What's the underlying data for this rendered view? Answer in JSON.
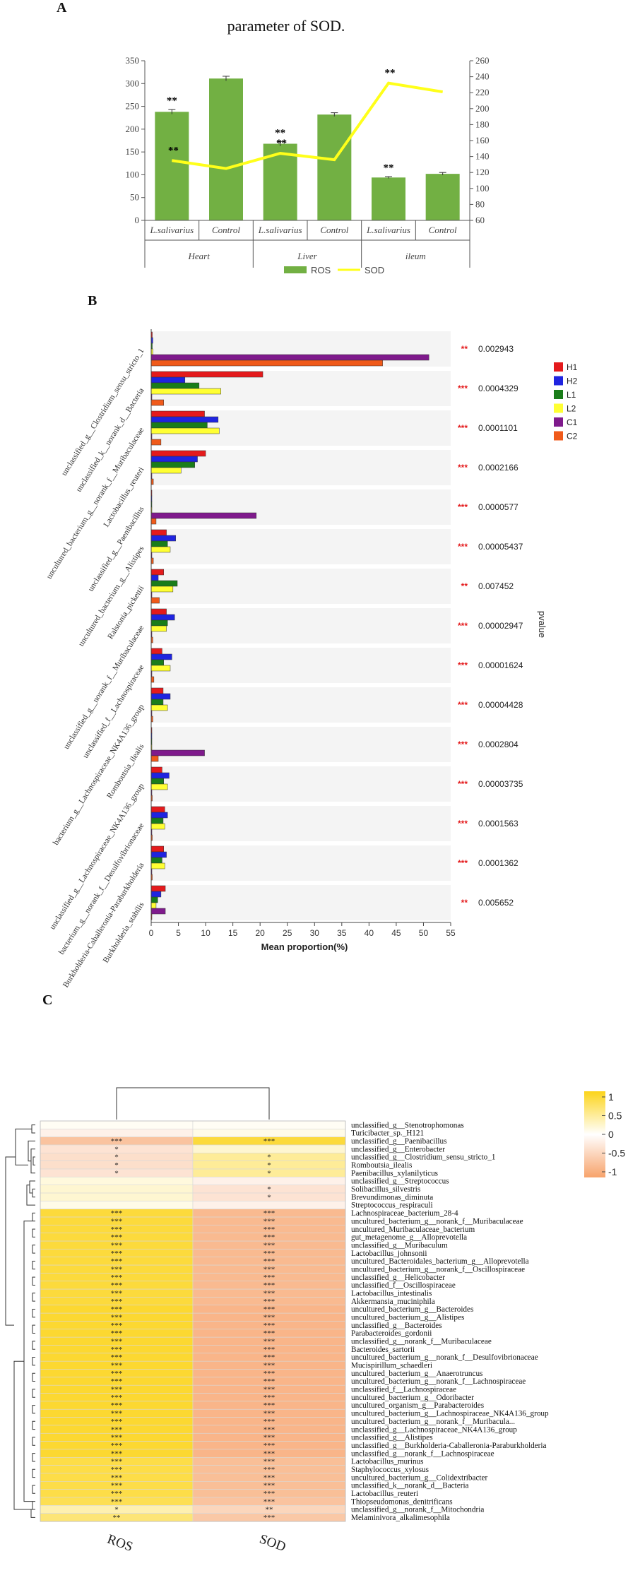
{
  "panels": {
    "a": "A",
    "b": "B",
    "c": "C"
  },
  "colors": {
    "ros_bar": "#72b043",
    "sod_line": "#ffff1a",
    "H1": "#e41a1c",
    "H2": "#1f24e0",
    "L1": "#1a7d1a",
    "L2": "#ffff33",
    "C1": "#7f1a8c",
    "C2": "#f05a1a",
    "sig_star": "#e41a1c",
    "heat_high": "#fcd41a",
    "heat_mid": "#ffffff",
    "heat_low": "#f7a36b"
  },
  "chart_data": [
    {
      "type": "bar",
      "title": "parameter of SOD.",
      "categories": [
        "L.salivarius",
        "Control",
        "L.salivarius",
        "Control",
        "L.salivarius",
        "Control"
      ],
      "groups": [
        "Heart",
        "Liver",
        "ileum"
      ],
      "series": [
        {
          "name": "ROS",
          "kind": "bar",
          "axis": "left",
          "values": [
            238,
            311,
            168,
            232,
            94,
            102
          ],
          "errors": [
            5,
            5,
            5,
            4,
            2,
            3
          ],
          "stars": [
            "**",
            "",
            "**",
            "",
            "**",
            ""
          ]
        },
        {
          "name": "SOD",
          "kind": "line",
          "axis": "right",
          "values": [
            135,
            125,
            144,
            136,
            232,
            221
          ],
          "stars": [
            "**",
            "",
            "**",
            "",
            "**",
            ""
          ]
        }
      ],
      "left_ylim": [
        0,
        350
      ],
      "left_ticks": [
        0,
        50,
        100,
        150,
        200,
        250,
        300,
        350
      ],
      "right_ylim": [
        60,
        260
      ],
      "right_ticks": [
        60,
        80,
        100,
        120,
        140,
        160,
        180,
        200,
        220,
        240,
        260
      ],
      "legend": [
        "ROS",
        "SOD"
      ]
    },
    {
      "type": "bar",
      "orientation": "horizontal",
      "xlabel": "Mean proportion(%)",
      "right_label": "pvalue",
      "xlim": [
        0,
        55
      ],
      "xticks": [
        0,
        5,
        10,
        15,
        20,
        25,
        30,
        35,
        40,
        45,
        50,
        55
      ],
      "series_names": [
        "H1",
        "H2",
        "L1",
        "L2",
        "C1",
        "C2"
      ],
      "rows": [
        {
          "label": "unclassified_g__Clostridium_sensu_stricto_1",
          "values": [
            0.2,
            0.3,
            0.2,
            0.3,
            51,
            42.5
          ],
          "sig": "**",
          "pvalue": "0.002943"
        },
        {
          "label": "unclassified_k__norank_d__Bacteria",
          "values": [
            20.5,
            6.2,
            8.8,
            12.8,
            0.1,
            2.3
          ],
          "sig": "***",
          "pvalue": "0.0004329"
        },
        {
          "label": "uncultured_bacterium_g__norank_f__Muribaculaceae",
          "values": [
            9.8,
            12.3,
            10.3,
            12.5,
            0.1,
            1.8
          ],
          "sig": "***",
          "pvalue": "0.0001101"
        },
        {
          "label": "Lactobacillus_reuteri",
          "values": [
            10,
            8.5,
            8,
            5.5,
            0.1,
            0.4
          ],
          "sig": "***",
          "pvalue": "0.0002166"
        },
        {
          "label": "unclassified_g__Paenibacillus",
          "values": [
            0.1,
            0.1,
            0.1,
            0.1,
            19.3,
            0.9
          ],
          "sig": "***",
          "pvalue": "0.0000577"
        },
        {
          "label": "uncultured_bacterium_g__Alistipes",
          "values": [
            2.8,
            4.5,
            3,
            3.5,
            0.1,
            0.4
          ],
          "sig": "***",
          "pvalue": "0.00005437"
        },
        {
          "label": "Ralstonia_pickettii",
          "values": [
            2.3,
            1.3,
            4.8,
            4,
            0.1,
            1.5
          ],
          "sig": "**",
          "pvalue": "0.007452"
        },
        {
          "label": "unclassified_g__norank_f__Muribaculaceae",
          "values": [
            2.8,
            4.3,
            3,
            2.8,
            0.1,
            0.3
          ],
          "sig": "***",
          "pvalue": "0.00002947"
        },
        {
          "label": "unclassified_f__Lachnospiraceae",
          "values": [
            2,
            3.8,
            2.3,
            3.5,
            0.1,
            0.5
          ],
          "sig": "***",
          "pvalue": "0.00001624"
        },
        {
          "label": "bacterium_g__Lachnospiraceae_NK4A136_group",
          "values": [
            2.2,
            3.5,
            2.2,
            3,
            0.1,
            0.3
          ],
          "sig": "***",
          "pvalue": "0.00004428"
        },
        {
          "label": "Romboutsia_ilealis",
          "values": [
            0.1,
            0.1,
            0.1,
            0.1,
            9.8,
            1.3
          ],
          "sig": "***",
          "pvalue": "0.0002804"
        },
        {
          "label": "unclassified_g__Lachnospiraceae_NK4A136_group",
          "values": [
            2,
            3.3,
            2.3,
            3,
            0.1,
            0.2
          ],
          "sig": "***",
          "pvalue": "0.00003735"
        },
        {
          "label": "bacterium_g__norank_f__Desulfovibrionaceae",
          "values": [
            2.5,
            3,
            2.2,
            2.5,
            0.1,
            0.2
          ],
          "sig": "***",
          "pvalue": "0.0001563"
        },
        {
          "label": "Burkholderia-Caballeronia-Paraburkholderia",
          "values": [
            2.3,
            2.8,
            2,
            2.5,
            0.1,
            0.2
          ],
          "sig": "***",
          "pvalue": "0.0001362"
        },
        {
          "label": "Burkholderia_stabilis",
          "values": [
            2.6,
            1.8,
            1.2,
            0.9,
            2.6,
            0.1
          ],
          "sig": "**",
          "pvalue": "0.005652"
        }
      ]
    },
    {
      "type": "heatmap",
      "columns": [
        "ROS",
        "SOD"
      ],
      "color_scale": {
        "min": -1,
        "max": 1,
        "ticks": [
          "1",
          "0.5",
          "0",
          "-0.5",
          "-1"
        ]
      },
      "rows": [
        {
          "label": "unclassified_g__Stenotrophomonas",
          "values": [
            0.05,
            0.05
          ],
          "stars": [
            "",
            ""
          ]
        },
        {
          "label": "Turicibacter_sp._H121",
          "values": [
            -0.15,
            0.1
          ],
          "stars": [
            "",
            ""
          ]
        },
        {
          "label": "unclassified_g__Paenibacillus",
          "values": [
            -0.65,
            0.85
          ],
          "stars": [
            "***",
            "***"
          ]
        },
        {
          "label": "unclassified_g__Enterobacter",
          "values": [
            -0.3,
            0.2
          ],
          "stars": [
            "*",
            ""
          ]
        },
        {
          "label": "unclassified_g__Clostridium_sensu_stricto_1",
          "values": [
            -0.35,
            0.45
          ],
          "stars": [
            "*",
            "*"
          ]
        },
        {
          "label": "Romboutsia_ilealis",
          "values": [
            -0.35,
            0.45
          ],
          "stars": [
            "*",
            "*"
          ]
        },
        {
          "label": "Paenibacillus_xylanilyticus",
          "values": [
            -0.3,
            0.45
          ],
          "stars": [
            "*",
            "*"
          ]
        },
        {
          "label": "unclassified_g__Streptococcus",
          "values": [
            0.15,
            -0.15
          ],
          "stars": [
            "",
            ""
          ]
        },
        {
          "label": "Solibacillus_silvestris",
          "values": [
            0.2,
            -0.3
          ],
          "stars": [
            "",
            "*"
          ]
        },
        {
          "label": "Brevundimonas_diminuta",
          "values": [
            0.2,
            -0.3
          ],
          "stars": [
            "",
            "*"
          ]
        },
        {
          "label": "Streptococcus_respiraculi",
          "values": [
            0.1,
            -0.15
          ],
          "stars": [
            "",
            ""
          ]
        },
        {
          "label": "Lachnospiraceae_bacterium_28-4",
          "values": [
            0.85,
            -0.75
          ],
          "stars": [
            "***",
            "***"
          ]
        },
        {
          "label": "uncultured_bacterium_g__norank_f__Muribaculaceae",
          "values": [
            0.85,
            -0.75
          ],
          "stars": [
            "***",
            "***"
          ]
        },
        {
          "label": "uncultured_Muribaculaceae_bacterium",
          "values": [
            0.85,
            -0.75
          ],
          "stars": [
            "***",
            "***"
          ]
        },
        {
          "label": "gut_metagenome_g__Alloprevotella",
          "values": [
            0.85,
            -0.75
          ],
          "stars": [
            "***",
            "***"
          ]
        },
        {
          "label": "unclassified_g__Muribaculum",
          "values": [
            0.85,
            -0.75
          ],
          "stars": [
            "***",
            "***"
          ]
        },
        {
          "label": "Lactobacillus_johnsonii",
          "values": [
            0.85,
            -0.75
          ],
          "stars": [
            "***",
            "***"
          ]
        },
        {
          "label": "uncultured_Bacteroidales_bacterium_g__Alloprevotella",
          "values": [
            0.85,
            -0.75
          ],
          "stars": [
            "***",
            "***"
          ]
        },
        {
          "label": "uncultured_bacterium_g__norank_f__Oscillospiraceae",
          "values": [
            0.85,
            -0.75
          ],
          "stars": [
            "***",
            "***"
          ]
        },
        {
          "label": "unclassified_g__Helicobacter",
          "values": [
            0.85,
            -0.75
          ],
          "stars": [
            "***",
            "***"
          ]
        },
        {
          "label": "unclassified_f__Oscillospiraceae",
          "values": [
            0.85,
            -0.75
          ],
          "stars": [
            "***",
            "***"
          ]
        },
        {
          "label": "Lactobacillus_intestinalis",
          "values": [
            0.85,
            -0.75
          ],
          "stars": [
            "***",
            "***"
          ]
        },
        {
          "label": "Akkermansia_muciniphila",
          "values": [
            0.85,
            -0.75
          ],
          "stars": [
            "***",
            "***"
          ]
        },
        {
          "label": "uncultured_bacterium_g__Bacteroides",
          "values": [
            0.9,
            -0.8
          ],
          "stars": [
            "***",
            "***"
          ]
        },
        {
          "label": "uncultured_bacterium_g__Alistipes",
          "values": [
            0.9,
            -0.8
          ],
          "stars": [
            "***",
            "***"
          ]
        },
        {
          "label": "unclassified_g__Bacteroides",
          "values": [
            0.9,
            -0.8
          ],
          "stars": [
            "***",
            "***"
          ]
        },
        {
          "label": "Parabacteroides_gordonii",
          "values": [
            0.9,
            -0.8
          ],
          "stars": [
            "***",
            "***"
          ]
        },
        {
          "label": "unclassified_g__norank_f__Muribaculaceae",
          "values": [
            0.9,
            -0.8
          ],
          "stars": [
            "***",
            "***"
          ]
        },
        {
          "label": "Bacteroides_sartorii",
          "values": [
            0.9,
            -0.8
          ],
          "stars": [
            "***",
            "***"
          ]
        },
        {
          "label": "uncultured_bacterium_g__norank_f__Desulfovibrionaceae",
          "values": [
            0.9,
            -0.8
          ],
          "stars": [
            "***",
            "***"
          ]
        },
        {
          "label": "Mucispirillum_schaedleri",
          "values": [
            0.9,
            -0.8
          ],
          "stars": [
            "***",
            "***"
          ]
        },
        {
          "label": "uncultured_bacterium_g__Anaerotruncus",
          "values": [
            0.9,
            -0.8
          ],
          "stars": [
            "***",
            "***"
          ]
        },
        {
          "label": "uncultured_bacterium_g__norank_f__Lachnospiraceae",
          "values": [
            0.9,
            -0.8
          ],
          "stars": [
            "***",
            "***"
          ]
        },
        {
          "label": "unclassified_f__Lachnospiraceae",
          "values": [
            0.9,
            -0.8
          ],
          "stars": [
            "***",
            "***"
          ]
        },
        {
          "label": "uncultured_bacterium_g__Odoribacter",
          "values": [
            0.9,
            -0.8
          ],
          "stars": [
            "***",
            "***"
          ]
        },
        {
          "label": "uncultured_organism_g__Parabacteroides",
          "values": [
            0.9,
            -0.8
          ],
          "stars": [
            "***",
            "***"
          ]
        },
        {
          "label": "uncultured_bacterium_g__Lachnospiraceae_NK4A136_group",
          "values": [
            0.9,
            -0.8
          ],
          "stars": [
            "***",
            "***"
          ]
        },
        {
          "label": "uncultured_bacterium_g__norank_f__Muribacula...",
          "values": [
            0.9,
            -0.8
          ],
          "stars": [
            "***",
            "***"
          ]
        },
        {
          "label": "unclassified_g__Lachnospiraceae_NK4A136_group",
          "values": [
            0.9,
            -0.8
          ],
          "stars": [
            "***",
            "***"
          ]
        },
        {
          "label": "unclassified_g__Alistipes",
          "values": [
            0.9,
            -0.8
          ],
          "stars": [
            "***",
            "***"
          ]
        },
        {
          "label": "unclassified_g__Burkholderia-Caballeronia-Paraburkholderia",
          "values": [
            0.9,
            -0.8
          ],
          "stars": [
            "***",
            "***"
          ]
        },
        {
          "label": "unclassified_g__norank_f__Lachnospiraceae",
          "values": [
            0.9,
            -0.8
          ],
          "stars": [
            "***",
            "***"
          ]
        },
        {
          "label": "Lactobacillus_murinus",
          "values": [
            0.8,
            -0.7
          ],
          "stars": [
            "***",
            "***"
          ]
        },
        {
          "label": "Staphylococcus_xylosus",
          "values": [
            0.8,
            -0.7
          ],
          "stars": [
            "***",
            "***"
          ]
        },
        {
          "label": "uncultured_bacterium_g__Colidextribacter",
          "values": [
            0.8,
            -0.7
          ],
          "stars": [
            "***",
            "***"
          ]
        },
        {
          "label": "unclassified_k__norank_d__Bacteria",
          "values": [
            0.8,
            -0.7
          ],
          "stars": [
            "***",
            "***"
          ]
        },
        {
          "label": "Lactobacillus_reuteri",
          "values": [
            0.8,
            -0.7
          ],
          "stars": [
            "***",
            "***"
          ]
        },
        {
          "label": "Thiopseudomonas_denitrificans",
          "values": [
            0.75,
            -0.65
          ],
          "stars": [
            "***",
            "***"
          ]
        },
        {
          "label": "unclassified_g__norank_f__Mitochondria",
          "values": [
            0.35,
            -0.45
          ],
          "stars": [
            "*",
            "**"
          ]
        },
        {
          "label": "Melaminivora_alkalimesophila",
          "values": [
            0.6,
            -0.6
          ],
          "stars": [
            "**",
            "***"
          ]
        }
      ]
    }
  ]
}
